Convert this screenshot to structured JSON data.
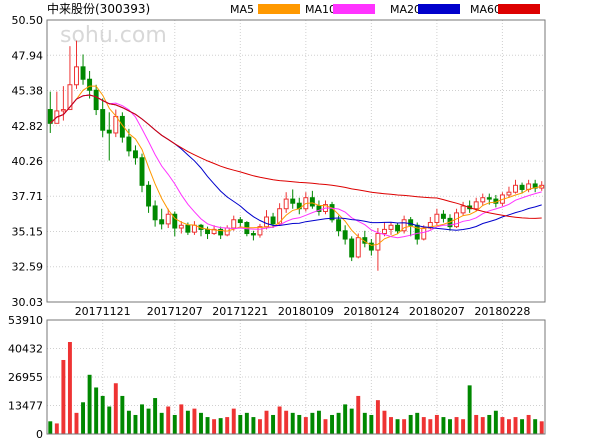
{
  "chart_data": {
    "type": "candlestick",
    "title": "中来股份(300393)",
    "watermark": "sohu.com",
    "legend": [
      {
        "name": "MA5",
        "color": "#ff9900"
      },
      {
        "name": "MA10",
        "color": "#ff33ff"
      },
      {
        "name": "MA20",
        "color": "#0000cc"
      },
      {
        "name": "MA60",
        "color": "#dd0000"
      }
    ],
    "price_ticks": [
      "50.50",
      "47.94",
      "45.38",
      "42.82",
      "40.26",
      "37.71",
      "35.15",
      "32.59",
      "30.03"
    ],
    "price_range": [
      30.03,
      50.5
    ],
    "volume_ticks": [
      "53910",
      "40432",
      "26955",
      "13477",
      "0"
    ],
    "volume_range": [
      0,
      53910
    ],
    "date_ticks": [
      "20171121",
      "20171207",
      "20171221",
      "20180109",
      "20180124",
      "20180207",
      "20180228"
    ],
    "date_tick_index": [
      8,
      19,
      29,
      39,
      49,
      59,
      69
    ],
    "colors": {
      "up": "#ee3333",
      "down": "#008800"
    },
    "candles": [
      [
        44.0,
        43.0,
        45.3,
        42.3,
        6000
      ],
      [
        43.0,
        43.9,
        45.3,
        43.0,
        5000
      ],
      [
        43.9,
        44.0,
        45.7,
        43.2,
        35000
      ],
      [
        44.0,
        45.8,
        48.6,
        44.0,
        43500
      ],
      [
        45.8,
        47.1,
        49.0,
        45.5,
        10000
      ],
      [
        47.1,
        46.2,
        48.0,
        45.8,
        15000
      ],
      [
        46.2,
        45.4,
        46.8,
        44.8,
        28000
      ],
      [
        45.4,
        44.0,
        45.8,
        43.6,
        22000
      ],
      [
        44.0,
        42.5,
        44.8,
        42.0,
        18000
      ],
      [
        42.5,
        42.3,
        43.8,
        40.3,
        13000
      ],
      [
        42.3,
        43.5,
        44.0,
        42.0,
        24000
      ],
      [
        43.5,
        42.0,
        43.8,
        41.6,
        18000
      ],
      [
        42.0,
        41.0,
        42.6,
        40.6,
        11000
      ],
      [
        41.0,
        40.5,
        41.4,
        40.0,
        9000
      ],
      [
        40.5,
        38.5,
        40.8,
        38.0,
        14000
      ],
      [
        38.5,
        37.0,
        38.8,
        36.5,
        12000
      ],
      [
        37.0,
        36.0,
        37.4,
        35.5,
        17000
      ],
      [
        36.0,
        35.7,
        36.8,
        35.3,
        10000
      ],
      [
        35.7,
        36.4,
        36.8,
        35.4,
        13000
      ],
      [
        36.4,
        35.4,
        36.6,
        34.8,
        9000
      ],
      [
        35.4,
        35.6,
        35.9,
        35.0,
        14000
      ],
      [
        35.6,
        35.1,
        35.8,
        34.9,
        11000
      ],
      [
        35.1,
        35.6,
        35.9,
        34.9,
        12000
      ],
      [
        35.6,
        35.3,
        35.7,
        34.8,
        10000
      ],
      [
        35.3,
        35.0,
        35.5,
        34.6,
        8000
      ],
      [
        35.0,
        35.3,
        35.6,
        34.9,
        7000
      ],
      [
        35.3,
        34.9,
        35.5,
        34.6,
        7500
      ],
      [
        34.9,
        35.4,
        35.6,
        34.8,
        8000
      ],
      [
        35.4,
        36.0,
        36.3,
        35.2,
        12000
      ],
      [
        36.0,
        35.8,
        36.2,
        35.4,
        9000
      ],
      [
        35.8,
        35.0,
        35.9,
        34.8,
        10000
      ],
      [
        35.0,
        34.9,
        35.2,
        34.5,
        8000
      ],
      [
        34.9,
        35.5,
        35.7,
        34.7,
        7000
      ],
      [
        35.5,
        36.2,
        36.7,
        35.3,
        11000
      ],
      [
        36.2,
        35.7,
        36.5,
        35.4,
        9000
      ],
      [
        35.7,
        36.8,
        37.2,
        35.6,
        13000
      ],
      [
        36.8,
        37.5,
        38.0,
        36.5,
        11000
      ],
      [
        37.5,
        37.2,
        38.2,
        36.8,
        10000
      ],
      [
        37.2,
        36.8,
        37.6,
        36.4,
        9000
      ],
      [
        36.8,
        37.6,
        38.0,
        36.6,
        8000
      ],
      [
        37.6,
        37.0,
        38.1,
        36.8,
        10000
      ],
      [
        37.0,
        36.6,
        37.4,
        36.3,
        11000
      ],
      [
        36.6,
        37.1,
        37.4,
        36.4,
        7000
      ],
      [
        37.1,
        36.0,
        37.3,
        35.8,
        9000
      ],
      [
        36.0,
        35.2,
        36.3,
        34.8,
        10000
      ],
      [
        35.2,
        34.6,
        35.6,
        34.2,
        14000
      ],
      [
        34.6,
        33.3,
        34.8,
        33.0,
        12000
      ],
      [
        33.3,
        34.7,
        35.0,
        33.2,
        18000
      ],
      [
        34.7,
        34.3,
        35.2,
        34.0,
        10000
      ],
      [
        34.3,
        33.8,
        34.6,
        33.4,
        9000
      ],
      [
        33.8,
        35.0,
        35.4,
        32.3,
        16000
      ],
      [
        35.0,
        35.3,
        35.8,
        34.8,
        11000
      ],
      [
        35.3,
        35.6,
        35.8,
        34.9,
        8000
      ],
      [
        35.6,
        35.2,
        35.8,
        35.0,
        7000
      ],
      [
        35.2,
        36.0,
        36.3,
        35.0,
        7000
      ],
      [
        36.0,
        35.6,
        36.2,
        34.8,
        9000
      ],
      [
        35.6,
        34.6,
        35.8,
        34.2,
        10000
      ],
      [
        34.6,
        35.4,
        35.6,
        34.5,
        8000
      ],
      [
        35.4,
        35.8,
        36.2,
        35.3,
        7000
      ],
      [
        35.8,
        36.4,
        36.8,
        35.6,
        9000
      ],
      [
        36.4,
        36.1,
        36.7,
        35.8,
        8000
      ],
      [
        36.1,
        35.5,
        36.4,
        35.2,
        7000
      ],
      [
        35.5,
        36.5,
        36.8,
        35.4,
        8000
      ],
      [
        36.5,
        37.0,
        37.3,
        36.3,
        7000
      ],
      [
        37.0,
        36.8,
        37.4,
        36.5,
        23000
      ],
      [
        36.8,
        37.3,
        37.6,
        36.6,
        9000
      ],
      [
        37.3,
        37.6,
        37.9,
        37.0,
        8000
      ],
      [
        37.6,
        37.5,
        37.9,
        37.1,
        9000
      ],
      [
        37.5,
        37.2,
        37.8,
        36.9,
        11000
      ],
      [
        37.2,
        37.8,
        38.0,
        37.0,
        8000
      ],
      [
        37.8,
        38.0,
        38.4,
        37.6,
        7000
      ],
      [
        38.0,
        38.5,
        38.9,
        37.9,
        8000
      ],
      [
        38.5,
        38.2,
        38.7,
        37.9,
        7000
      ],
      [
        38.2,
        38.6,
        38.9,
        38.0,
        9000
      ],
      [
        38.6,
        38.3,
        38.9,
        38.0,
        7000
      ],
      [
        38.3,
        38.5,
        38.8,
        38.1,
        6000
      ]
    ]
  }
}
